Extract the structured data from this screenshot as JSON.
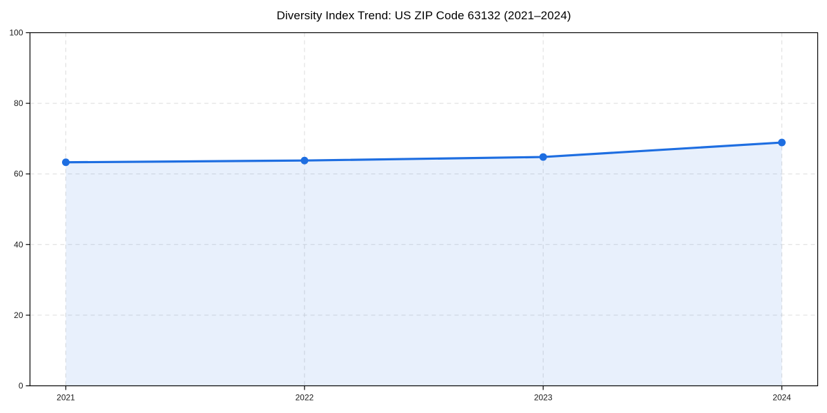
{
  "title": "Diversity Index Trend: US ZIP Code 63132 (2021–2024)",
  "chart_data": {
    "type": "line",
    "title": "Diversity Index Trend: US ZIP Code 63132 (2021–2024)",
    "x": [
      2021,
      2022,
      2023,
      2024
    ],
    "xtick_labels": [
      "2021",
      "2022",
      "2023",
      "2024"
    ],
    "series": [
      {
        "name": "Diversity Index",
        "values": [
          63.3,
          63.8,
          64.8,
          68.9
        ]
      }
    ],
    "xlabel": "",
    "ylabel": "",
    "ylim": [
      0,
      100
    ],
    "yticks": [
      0,
      20,
      40,
      60,
      80,
      100
    ],
    "ytick_labels": [
      "0",
      "20",
      "40",
      "60",
      "80",
      "100"
    ],
    "grid": "dashed",
    "legend": "none",
    "area_fill": true,
    "colors": {
      "line": "#1e6ee1",
      "marker": "#1e6ee1",
      "fill": "rgba(30,110,225,0.10)",
      "grid": "#dcdcdc",
      "axis": "#000000",
      "tick_text": "#1a1a1a",
      "background": "#ffffff"
    }
  }
}
